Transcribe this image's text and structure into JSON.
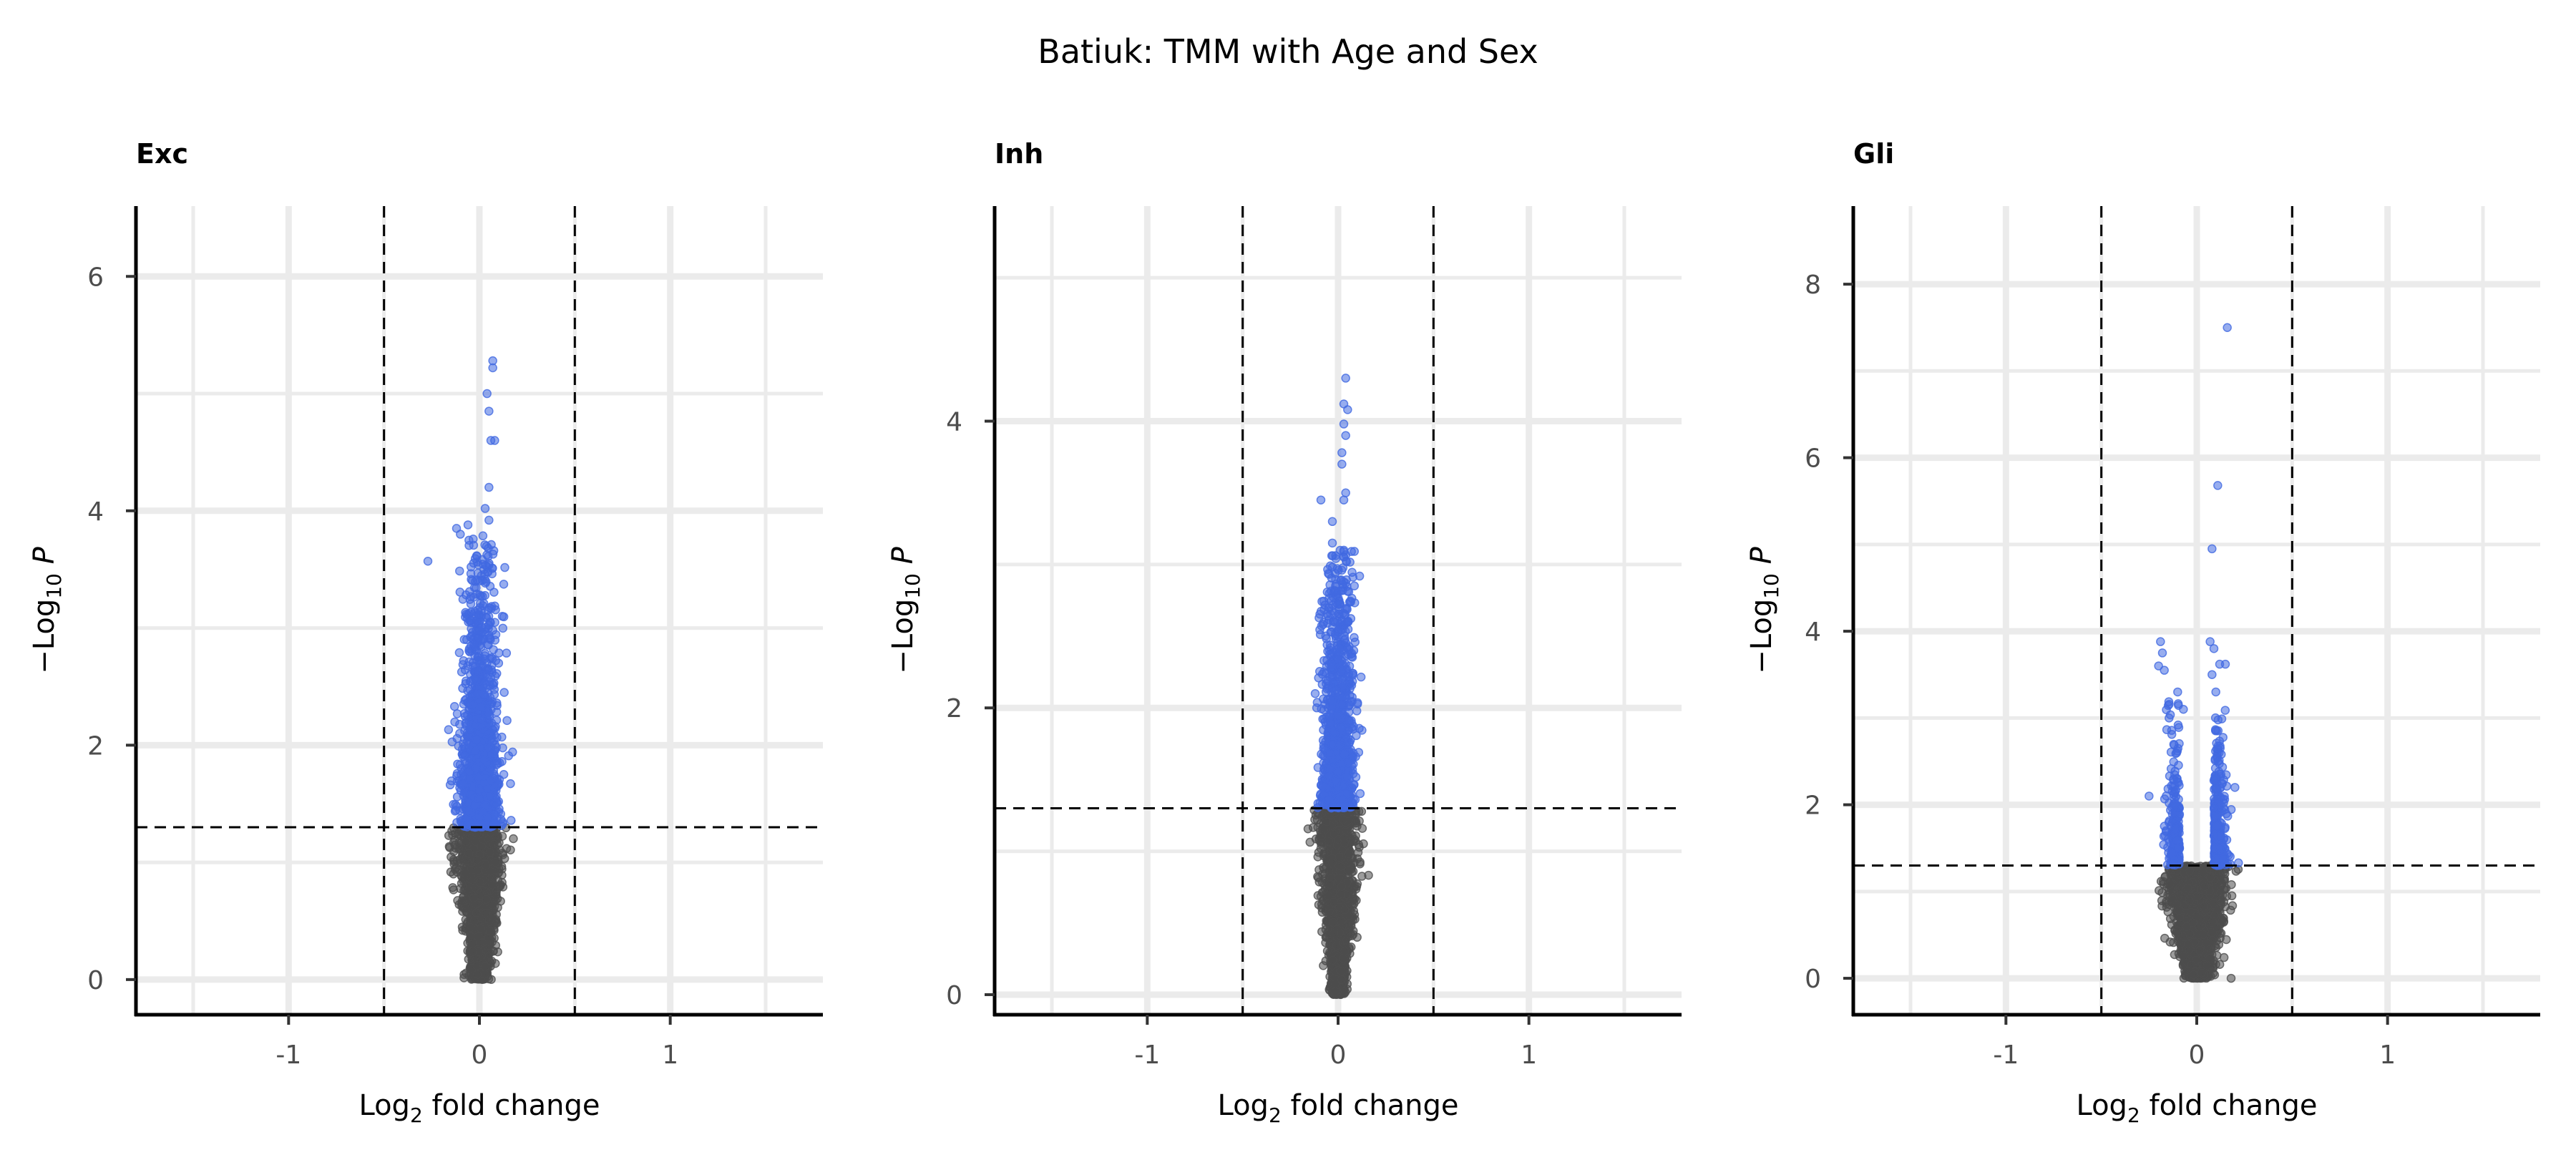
{
  "figure": {
    "title": "Batiuk: TMM with Age and Sex"
  },
  "chart_data": [
    {
      "type": "scatter",
      "title": "Exc",
      "xlabel_main": "Log",
      "xlabel_sub": "2",
      "xlabel_rest": " fold change",
      "ylabel_main": "−Log",
      "ylabel_sub": "10",
      "ylabel_rest": " P",
      "xlim": [
        -1.8,
        1.8
      ],
      "ylim": [
        -0.3,
        6.6
      ],
      "xticks": [
        -1,
        0,
        1
      ],
      "xtick_labels": [
        "-1",
        "0",
        "1"
      ],
      "yticks": [
        0,
        2,
        4,
        6
      ],
      "ytick_labels": [
        "0",
        "2",
        "4",
        "6"
      ],
      "fc_cutoff": 0.5,
      "p_cutoff": 1.3,
      "sig_color": "#4169e1",
      "ns_color": "#4d4d4d",
      "peak_points": [
        {
          "x": 0.07,
          "y": 5.28
        },
        {
          "x": 0.07,
          "y": 5.22
        },
        {
          "x": 0.04,
          "y": 5.0
        },
        {
          "x": 0.05,
          "y": 4.85
        },
        {
          "x": 0.06,
          "y": 4.6
        },
        {
          "x": 0.08,
          "y": 4.6
        },
        {
          "x": 0.05,
          "y": 4.2
        },
        {
          "x": 0.03,
          "y": 4.02
        },
        {
          "x": 0.05,
          "y": 3.92
        },
        {
          "x": -0.12,
          "y": 3.85
        },
        {
          "x": -0.1,
          "y": 3.8
        },
        {
          "x": -0.06,
          "y": 3.88
        },
        {
          "x": -0.27,
          "y": 3.57
        },
        {
          "x": 0.12,
          "y": 3.1
        },
        {
          "x": 0.13,
          "y": 2.45
        }
      ],
      "cloud": {
        "n_sig": 1400,
        "n_ns": 1500,
        "spread": 0.065,
        "center": 0.0,
        "ymax": 3.8,
        "decay": 0.75
      }
    },
    {
      "type": "scatter",
      "title": "Inh",
      "xlabel_main": "Log",
      "xlabel_sub": "2",
      "xlabel_rest": " fold change",
      "ylabel_main": "−Log",
      "ylabel_sub": "10",
      "ylabel_rest": " P",
      "xlim": [
        -1.8,
        1.8
      ],
      "ylim": [
        -0.14,
        5.5
      ],
      "xticks": [
        -1,
        0,
        1
      ],
      "xtick_labels": [
        "-1",
        "0",
        "1"
      ],
      "yticks": [
        0,
        2,
        4
      ],
      "ytick_labels": [
        "0",
        "2",
        "4"
      ],
      "fc_cutoff": 0.5,
      "p_cutoff": 1.3,
      "sig_color": "#4169e1",
      "ns_color": "#4d4d4d",
      "peak_points": [
        {
          "x": 0.04,
          "y": 4.3
        },
        {
          "x": 0.03,
          "y": 4.12
        },
        {
          "x": 0.05,
          "y": 4.08
        },
        {
          "x": 0.03,
          "y": 3.98
        },
        {
          "x": 0.04,
          "y": 3.9
        },
        {
          "x": 0.02,
          "y": 3.78
        },
        {
          "x": 0.02,
          "y": 3.7
        },
        {
          "x": 0.04,
          "y": 3.5
        },
        {
          "x": 0.03,
          "y": 3.45
        },
        {
          "x": -0.03,
          "y": 3.3
        },
        {
          "x": -0.03,
          "y": 3.15
        },
        {
          "x": -0.09,
          "y": 3.45
        },
        {
          "x": 0.03,
          "y": 3.1
        },
        {
          "x": -0.12,
          "y": 2.1
        }
      ],
      "cloud": {
        "n_sig": 1100,
        "n_ns": 1600,
        "spread": 0.055,
        "center": 0.0,
        "ymax": 3.1,
        "decay": 0.65
      }
    },
    {
      "type": "scatter",
      "title": "Gli",
      "xlabel_main": "Log",
      "xlabel_sub": "2",
      "xlabel_rest": " fold change",
      "ylabel_main": "−Log",
      "ylabel_sub": "10",
      "ylabel_rest": " P",
      "xlim": [
        -1.8,
        1.8
      ],
      "ylim": [
        -0.42,
        8.9
      ],
      "xticks": [
        -1,
        0,
        1
      ],
      "xtick_labels": [
        "-1",
        "0",
        "1"
      ],
      "yticks": [
        0,
        2,
        4,
        6,
        8
      ],
      "ytick_labels": [
        "0",
        "2",
        "4",
        "6",
        "8"
      ],
      "fc_cutoff": 0.5,
      "p_cutoff": 1.3,
      "sig_color": "#4169e1",
      "ns_color": "#4d4d4d",
      "peak_points": [
        {
          "x": 0.16,
          "y": 7.5
        },
        {
          "x": 0.11,
          "y": 5.68
        },
        {
          "x": 0.08,
          "y": 4.95
        },
        {
          "x": -0.19,
          "y": 3.88
        },
        {
          "x": -0.18,
          "y": 3.75
        },
        {
          "x": -0.2,
          "y": 3.6
        },
        {
          "x": -0.17,
          "y": 3.55
        },
        {
          "x": 0.07,
          "y": 3.88
        },
        {
          "x": 0.09,
          "y": 3.8
        },
        {
          "x": 0.12,
          "y": 3.62
        },
        {
          "x": 0.15,
          "y": 3.62
        },
        {
          "x": 0.08,
          "y": 3.5
        },
        {
          "x": -0.1,
          "y": 3.3
        },
        {
          "x": -0.07,
          "y": 3.1
        },
        {
          "x": 0.1,
          "y": 3.3
        },
        {
          "x": 0.18,
          "y": 0.0
        },
        {
          "x": -0.25,
          "y": 2.1
        },
        {
          "x": 0.2,
          "y": 2.2
        }
      ],
      "cloud": {
        "n_sig": 500,
        "n_ns": 1800,
        "spread": 0.085,
        "center": 0.0,
        "ymax": 3.2,
        "decay": 0.6,
        "bimodal": true
      }
    }
  ]
}
